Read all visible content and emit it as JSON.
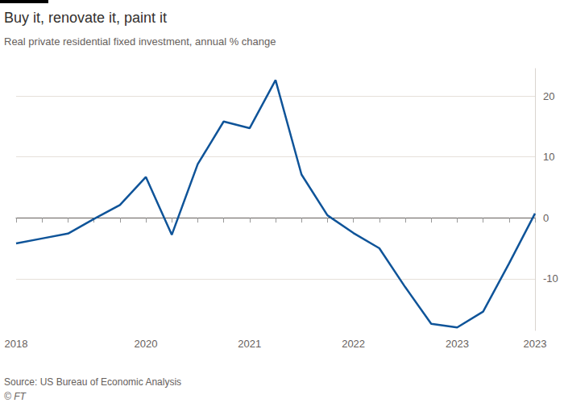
{
  "chart_data": {
    "type": "line",
    "title": "Buy it, renovate it, paint it",
    "subtitle": "Real private residential fixed investment, annual % change",
    "annotations": [
      "Source: US Bureau of Economic Analysis",
      "© FT"
    ],
    "categories": [
      "2018",
      null,
      null,
      null,
      null,
      "2020",
      null,
      null,
      null,
      "2021",
      null,
      null,
      null,
      "2022",
      null,
      null,
      null,
      "2023",
      null,
      null,
      "2023"
    ],
    "values": [
      -4.2,
      -3.4,
      -2.6,
      -0.2,
      2.1,
      6.7,
      -2.8,
      8.8,
      15.8,
      14.7,
      22.6,
      7.1,
      0.4,
      -2.5,
      -5.0,
      -11.4,
      -17.4,
      -18.0,
      -15.4,
      -7.5,
      0.7
    ],
    "color": "#0f5499",
    "ylim": [
      -18.5,
      24.5
    ],
    "yticks": [
      -10,
      0,
      10,
      20
    ],
    "grid": true
  }
}
